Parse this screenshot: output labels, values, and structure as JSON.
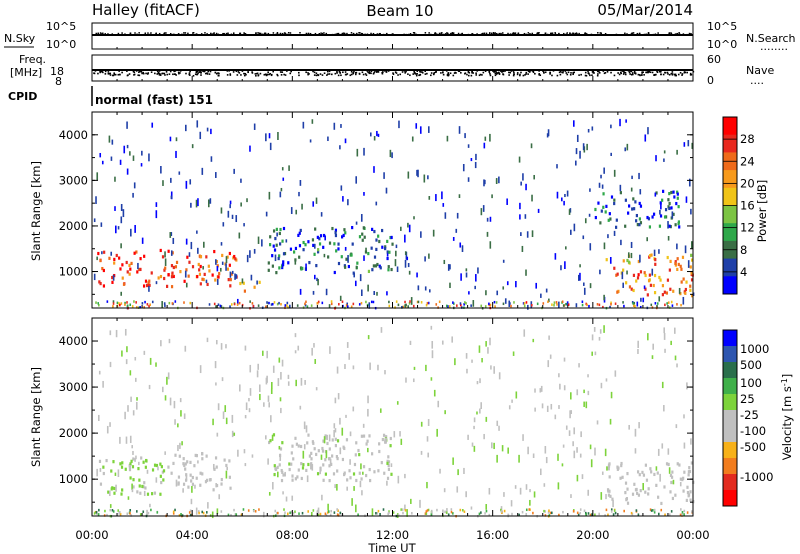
{
  "header": {
    "station": "Halley (fitACF)",
    "beam": "Beam 10",
    "date": "05/Mar/2014"
  },
  "side_labels": {
    "nsky": "N.Sky",
    "nsearch": "N.Search",
    "nsearch_dots": "........",
    "freq_line1": "Freq.",
    "freq_line2": "[MHz]",
    "nave": "Nave",
    "nave_dots": "....",
    "cpid": "CPID",
    "cpid_value": "normal (fast) 151"
  },
  "strip_ticks": {
    "nsky_top": "10^5",
    "nsky_bottom": "10^0",
    "nsearch_top": "10^5",
    "nsearch_bottom": "10^0",
    "freq_top": "18",
    "freq_bottom": "8",
    "nave_top": "60",
    "nave_bottom": "0"
  },
  "colors": {
    "power": [
      "#0000ff",
      "#1f3fa8",
      "#3a6e45",
      "#2ea84a",
      "#7cc443",
      "#f0c418",
      "#f79a1c",
      "#ef6a1a",
      "#e8281e",
      "#ff0000"
    ],
    "velocity": [
      "#ff0000",
      "#e22b1f",
      "#f27d1e",
      "#f7b119",
      "#c0c0c0",
      "#c0c0c0",
      "#7dd33b",
      "#3fb04a",
      "#2a6f4c",
      "#2e56b0",
      "#0000ff"
    ],
    "ground_scatter": "#a0a0a0"
  },
  "chart_data": [
    {
      "type": "heatmap",
      "title": "",
      "xlabel": "",
      "ylabel": "Slant Range [km]",
      "xlim": [
        "00:00",
        "00:00"
      ],
      "ylim": [
        200,
        4500
      ],
      "x_ticks": [
        "00:00",
        "04:00",
        "08:00",
        "12:00",
        "16:00",
        "20:00",
        "00:00"
      ],
      "y_ticks": [
        "1000",
        "2000",
        "3000",
        "4000"
      ],
      "colorbar": {
        "label": "Power [dB]",
        "ticks": [
          "4",
          "8",
          "12",
          "16",
          "20",
          "24",
          "28"
        ],
        "range": [
          0,
          32
        ]
      },
      "echo_regions": [
        {
          "t_start": 0.2,
          "t_end": 5.8,
          "range_min": 700,
          "range_max": 1500,
          "level": 26
        },
        {
          "t_start": 5.8,
          "t_end": 6.8,
          "range_min": 600,
          "range_max": 800,
          "level": 22
        },
        {
          "t_start": 7.0,
          "t_end": 12.0,
          "range_min": 1000,
          "range_max": 2000,
          "level": 6
        },
        {
          "t_start": 20.5,
          "t_end": 24.0,
          "range_min": 500,
          "range_max": 1400,
          "level": 22
        },
        {
          "t_start": 20.0,
          "t_end": 23.5,
          "range_min": 2000,
          "range_max": 2800,
          "level": 5
        }
      ]
    },
    {
      "type": "heatmap",
      "title": "",
      "xlabel": "Time UT",
      "ylabel": "Slant Range [km]",
      "xlim": [
        "00:00",
        "00:00"
      ],
      "ylim": [
        200,
        4500
      ],
      "x_ticks": [
        "00:00",
        "04:00",
        "08:00",
        "12:00",
        "16:00",
        "20:00",
        "00:00"
      ],
      "y_ticks": [
        "1000",
        "2000",
        "3000",
        "4000"
      ],
      "colorbar": {
        "label": "Velocity [m s^-1]",
        "ticks": [
          "1000",
          "500",
          "100",
          "25",
          "-25",
          "-100",
          "-500",
          "-1000"
        ]
      },
      "echo_regions": [
        {
          "t_start": 0.2,
          "t_end": 3.0,
          "range_min": 700,
          "range_max": 1500,
          "velocity": 150
        },
        {
          "t_start": 3.0,
          "t_end": 5.5,
          "range_min": 800,
          "range_max": 1600,
          "velocity": -150
        },
        {
          "t_start": 7.0,
          "t_end": 12.0,
          "range_min": 1000,
          "range_max": 2000,
          "velocity": 0
        },
        {
          "t_start": 20.5,
          "t_end": 24.0,
          "range_min": 500,
          "range_max": 1400,
          "velocity": -150
        }
      ]
    }
  ]
}
